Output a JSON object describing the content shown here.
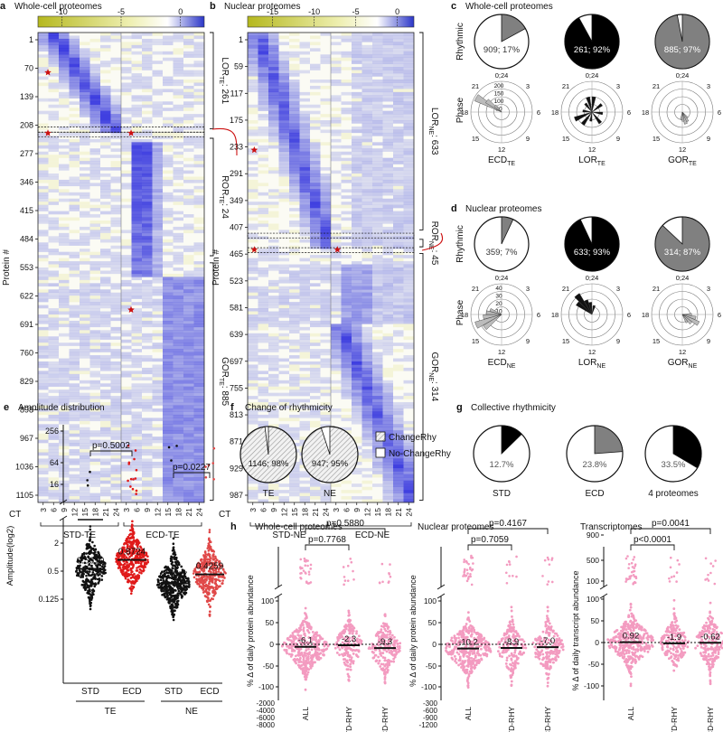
{
  "panels": {
    "a": {
      "letter": "a",
      "title": "Whole-cell proteomes",
      "colorbar_ticks": [
        "-10",
        "-5",
        "0"
      ],
      "row_ticks": [
        "1",
        "70",
        "139",
        "208",
        "277",
        "346",
        "415",
        "484",
        "553",
        "622",
        "691",
        "760",
        "829",
        "898",
        "967",
        "1036",
        "1105"
      ],
      "ct_label": "CT",
      "ct_ticks": [
        "3",
        "6",
        "9",
        "12",
        "15",
        "18",
        "21",
        "24",
        "3",
        "6",
        "9",
        "12",
        "15",
        "18",
        "21",
        "24"
      ],
      "ylabel": "Protein #",
      "groups": [
        "STD-TE",
        "ECD-TE"
      ],
      "brackets": [
        {
          "main": "LOR",
          "sub": "TE",
          "count": ": 261"
        },
        {
          "main": "ROR",
          "sub": "TE",
          "count": ": 24"
        },
        {
          "main": "GOR",
          "sub": "TE",
          "count": ": 885"
        }
      ]
    },
    "b": {
      "letter": "b",
      "title": "Nuclear proteomes",
      "colorbar_ticks": [
        "-15",
        "-10",
        "-5",
        "0"
      ],
      "row_ticks": [
        "1",
        "59",
        "117",
        "175",
        "233",
        "291",
        "349",
        "407",
        "465",
        "523",
        "581",
        "639",
        "697",
        "755",
        "813",
        "871",
        "929",
        "987"
      ],
      "ct_label": "CT",
      "ct_ticks": [
        "3",
        "6",
        "9",
        "12",
        "15",
        "18",
        "21",
        "24",
        "3",
        "6",
        "9",
        "12",
        "15",
        "18",
        "21",
        "24"
      ],
      "ylabel": "Protein #",
      "groups": [
        "STD-NE",
        "ECD-NE"
      ],
      "brackets": [
        {
          "main": "LOR",
          "sub": "NE",
          "count": ": 633"
        },
        {
          "main": "ROR",
          "sub": "NE",
          "count": ": 45"
        },
        {
          "main": "GOR",
          "sub": "NE",
          "count": ": 314"
        }
      ]
    },
    "c": {
      "letter": "c",
      "title": "Whole-cell proteomes",
      "row1": "Rhythmic",
      "row2": "Phase",
      "pies": [
        {
          "label": "909; 17%",
          "fraction": 0.17,
          "color": "#808080",
          "text_color": "#333333"
        },
        {
          "label": "261; 92%",
          "fraction": 0.92,
          "color": "#000000",
          "text_color": "#ffffff"
        },
        {
          "label": "885; 97%",
          "fraction": 0.97,
          "color": "#808080",
          "text_color": "#ffffff"
        }
      ],
      "radial_ticks": [
        "200",
        "150",
        "100",
        "50"
      ],
      "clock": [
        "0;24",
        "3",
        "6",
        "9",
        "12",
        "15",
        "18",
        "21"
      ],
      "roses": [
        {
          "main": "ECD",
          "sub": "TE"
        },
        {
          "main": "LOR",
          "sub": "TE"
        },
        {
          "main": "GOR",
          "sub": "TE"
        }
      ]
    },
    "d": {
      "letter": "d",
      "title": "Nuclear proteomes",
      "row1": "Rhythmic",
      "row2": "Phase",
      "pies": [
        {
          "label": "359; 7%",
          "fraction": 0.07,
          "color": "#808080",
          "text_color": "#333333"
        },
        {
          "label": "633; 93%",
          "fraction": 0.93,
          "color": "#000000",
          "text_color": "#ffffff"
        },
        {
          "label": "314; 87%",
          "fraction": 0.87,
          "color": "#808080",
          "text_color": "#ffffff"
        }
      ],
      "radial_ticks": [
        "40",
        "30",
        "20",
        "10"
      ],
      "clock": [
        "0;24",
        "3",
        "6",
        "9",
        "12",
        "15",
        "18",
        "21"
      ],
      "roses": [
        {
          "main": "ECD",
          "sub": "NE"
        },
        {
          "main": "LOR",
          "sub": "NE"
        },
        {
          "main": "GOR",
          "sub": "NE"
        }
      ]
    },
    "e": {
      "letter": "e",
      "title": "Amplitude distribution",
      "ylabel": "Amplitude(log2)",
      "yticks": [
        "256",
        "64",
        "16",
        "2",
        "0.5",
        "0.125"
      ],
      "groups": [
        "STD",
        "ECD",
        "STD",
        "ECD"
      ],
      "dataset_labels": [
        "TE",
        "NE"
      ],
      "medians": [
        "0.5610",
        "0.8724",
        "0.2737",
        "0.4259"
      ],
      "pvalues": [
        "p=0.5002",
        "p=0.0227"
      ]
    },
    "f": {
      "letter": "f",
      "title": "Change of rhythmicity",
      "pies": [
        {
          "label": "1146; 98%",
          "name": "TE",
          "fraction": 0.98
        },
        {
          "label": "947; 95%",
          "name": "NE",
          "fraction": 0.95
        }
      ],
      "legend": [
        "ChangeRhy",
        "No-ChangeRhy"
      ]
    },
    "g": {
      "letter": "g",
      "title": "Collective rhythmicity",
      "pies": [
        {
          "label": "12.7%",
          "name": "STD",
          "fraction": 0.127,
          "color": "#000000"
        },
        {
          "label": "23.8%",
          "name": "ECD",
          "fraction": 0.238,
          "color": "#808080"
        },
        {
          "label": "33.5%",
          "name": "4 proteomes",
          "fraction": 0.335,
          "color": "#000000"
        }
      ]
    },
    "h": {
      "letter": "h",
      "subplots": [
        {
          "title": "Whole-cell proteomes",
          "ylabel": "% Δ of daily protein abundance",
          "yticks_top": [
            "100",
            "50",
            "0",
            "-50",
            "-100"
          ],
          "yticks_bottom": [
            "-2000",
            "-4000",
            "-6000",
            "-8000"
          ],
          "cats": [
            "ALL",
            "STD-\nRHY",
            "ECD-\nRHY"
          ],
          "medians": [
            "-6.1",
            "-2.3",
            "-9.3"
          ],
          "pvalues": [
            "p=0.7768",
            "p=0.5880"
          ]
        },
        {
          "title": "Nuclear proteomes",
          "ylabel": "% Δ of daily protein abundance",
          "yticks_top": [
            "100",
            "50",
            "0",
            "-50",
            "-100"
          ],
          "yticks_bottom": [
            "-300",
            "-600",
            "-900",
            "-1200"
          ],
          "cats": [
            "ALL",
            "STD-\nRHY",
            "ECD-\nRHY"
          ],
          "medians": [
            "-10.2",
            "-8.9",
            "-7.0"
          ],
          "pvalues": [
            "p=0.7059",
            "p=0.4167"
          ]
        },
        {
          "title": "Transcriptomes",
          "ylabel": "% Δ of daily transcript abundance",
          "yticks_top": [
            "900",
            "500",
            "100"
          ],
          "yticks_bottom": [
            "100",
            "50",
            "0",
            "-50",
            "-100"
          ],
          "cats": [
            "ALL",
            "STD-\nRHY",
            "ECD-\nRHY"
          ],
          "medians": [
            "0.92",
            "-1.9",
            "-0.62"
          ],
          "pvalues": [
            "p<0.0001",
            "p=0.0041"
          ]
        }
      ]
    }
  },
  "chart_data": [
    {
      "type": "heatmap",
      "title": "Whole-cell proteomes",
      "xlabel": "CT",
      "ylabel": "Protein #",
      "colorbar": [
        -12,
        2
      ],
      "clusters": [
        {
          "name": "LOR_TE",
          "count": 261
        },
        {
          "name": "ROR_TE",
          "count": 24
        },
        {
          "name": "GOR_TE",
          "count": 885
        }
      ]
    },
    {
      "type": "heatmap",
      "title": "Nuclear proteomes",
      "xlabel": "CT",
      "ylabel": "Protein #",
      "colorbar": [
        -18,
        2
      ],
      "clusters": [
        {
          "name": "LOR_NE",
          "count": 633
        },
        {
          "name": "ROR_NE",
          "count": 45
        },
        {
          "name": "GOR_NE",
          "count": 314
        }
      ]
    },
    {
      "type": "pie",
      "title": "Whole-cell proteomes",
      "values": [
        {
          "count": 909,
          "percent": 17
        },
        {
          "count": 261,
          "percent": 92
        },
        {
          "count": 885,
          "percent": 97
        }
      ]
    },
    {
      "type": "pie",
      "title": "Nuclear proteomes",
      "values": [
        {
          "count": 359,
          "percent": 7
        },
        {
          "count": 633,
          "percent": 93
        },
        {
          "count": 314,
          "percent": 87
        }
      ]
    },
    {
      "type": "scatter",
      "title": "Amplitude distribution",
      "ylabel": "Amplitude(log2)",
      "categories": [
        "TE STD",
        "TE ECD",
        "NE STD",
        "NE ECD"
      ],
      "medians": [
        0.561,
        0.8724,
        0.2737,
        0.4259
      ],
      "pvalues": [
        0.5002,
        0.0227
      ]
    },
    {
      "type": "pie",
      "title": "Change of rhythmicity",
      "values": [
        {
          "name": "TE",
          "count": 1146,
          "percent": 98
        },
        {
          "name": "NE",
          "count": 947,
          "percent": 95
        }
      ]
    },
    {
      "type": "pie",
      "title": "Collective rhythmicity",
      "values": [
        {
          "name": "STD",
          "percent": 12.7
        },
        {
          "name": "ECD",
          "percent": 23.8
        },
        {
          "name": "4 proteomes",
          "percent": 33.5
        }
      ]
    },
    {
      "type": "scatter",
      "title": "Whole-cell proteomes",
      "categories": [
        "ALL",
        "STD-RHY",
        "ECD-RHY"
      ],
      "medians": [
        -6.1,
        -2.3,
        -9.3
      ],
      "pvalues": [
        0.7768,
        0.588
      ]
    },
    {
      "type": "scatter",
      "title": "Nuclear proteomes",
      "categories": [
        "ALL",
        "STD-RHY",
        "ECD-RHY"
      ],
      "medians": [
        -10.2,
        -8.9,
        -7.0
      ],
      "pvalues": [
        0.7059,
        0.4167
      ]
    },
    {
      "type": "scatter",
      "title": "Transcriptomes",
      "categories": [
        "ALL",
        "STD-RHY",
        "ECD-RHY"
      ],
      "medians": [
        0.92,
        -1.9,
        -0.62
      ],
      "pvalues": [
        0.0001,
        0.0041
      ]
    }
  ]
}
